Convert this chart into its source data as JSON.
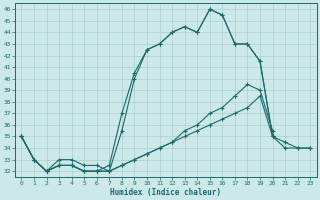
{
  "xlabel": "Humidex (Indice chaleur)",
  "bg_color": "#cce8e8",
  "line_color": "#1a6b6b",
  "grid_color": "#aacfcf",
  "xlim": [
    -0.5,
    23.5
  ],
  "ylim": [
    31.5,
    46.5
  ],
  "xticks": [
    0,
    1,
    2,
    3,
    4,
    5,
    6,
    7,
    8,
    9,
    10,
    11,
    12,
    13,
    14,
    15,
    16,
    17,
    18,
    19,
    20,
    21,
    22,
    23
  ],
  "yticks": [
    32,
    33,
    34,
    35,
    36,
    37,
    38,
    39,
    40,
    41,
    42,
    43,
    44,
    45,
    46
  ],
  "lines": [
    {
      "x": [
        0,
        1,
        2,
        3,
        4,
        5,
        6,
        7,
        8,
        9,
        10,
        11,
        12,
        13,
        14,
        15,
        16,
        17,
        18,
        19,
        20,
        21,
        22,
        23
      ],
      "y": [
        35.0,
        33.0,
        32.0,
        32.5,
        32.5,
        32.0,
        32.0,
        32.0,
        35.5,
        40.0,
        42.5,
        43.0,
        44.0,
        44.5,
        44.0,
        46.0,
        45.5,
        43.0,
        43.0,
        41.5,
        35.0,
        34.0,
        34.0,
        34.0
      ]
    },
    {
      "x": [
        0,
        1,
        2,
        3,
        4,
        5,
        6,
        7,
        8,
        9,
        10,
        11,
        12,
        13,
        14,
        15,
        16,
        17,
        18,
        19,
        20
      ],
      "y": [
        35.0,
        33.0,
        32.0,
        32.5,
        32.5,
        32.0,
        32.0,
        32.5,
        37.0,
        40.5,
        42.5,
        43.0,
        44.0,
        44.5,
        44.0,
        46.0,
        45.5,
        43.0,
        43.0,
        41.5,
        35.0
      ]
    },
    {
      "x": [
        0,
        1,
        2,
        3,
        4,
        5,
        6,
        7,
        8,
        9,
        10,
        11,
        12,
        13,
        14,
        15,
        16,
        17,
        18,
        19,
        20
      ],
      "y": [
        35.0,
        33.0,
        32.0,
        32.5,
        32.5,
        32.0,
        32.0,
        32.0,
        32.5,
        33.0,
        33.5,
        34.0,
        34.5,
        35.5,
        36.0,
        37.0,
        37.5,
        38.5,
        39.5,
        39.0,
        35.5
      ]
    },
    {
      "x": [
        0,
        1,
        2,
        3,
        4,
        5,
        6,
        7,
        8,
        9,
        10,
        11,
        12,
        13,
        14,
        15,
        16,
        17,
        18,
        19,
        20,
        21,
        22,
        23
      ],
      "y": [
        35.0,
        33.0,
        32.0,
        33.0,
        33.0,
        32.5,
        32.5,
        32.0,
        32.5,
        33.0,
        33.5,
        34.0,
        34.5,
        35.0,
        35.5,
        36.0,
        36.5,
        37.0,
        37.5,
        38.5,
        35.0,
        34.5,
        34.0,
        34.0
      ]
    }
  ]
}
